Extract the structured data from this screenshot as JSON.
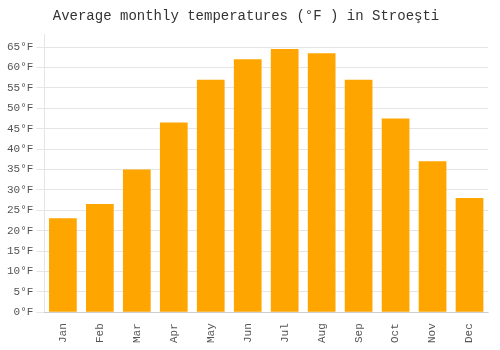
{
  "chart_data": {
    "type": "bar",
    "title": "Average monthly temperatures (°F ) in Stroeşti",
    "categories": [
      "Jan",
      "Feb",
      "Mar",
      "Apr",
      "May",
      "Jun",
      "Jul",
      "Aug",
      "Sep",
      "Oct",
      "Nov",
      "Dec"
    ],
    "values": [
      23,
      26.5,
      35,
      46.5,
      57,
      62,
      64.5,
      63.5,
      57,
      47.5,
      37,
      28
    ],
    "color": "#FFA500",
    "ylim": [
      0,
      68
    ],
    "yticks": [
      {
        "value": 0,
        "label": "0°F"
      },
      {
        "value": 5,
        "label": "5°F"
      },
      {
        "value": 10,
        "label": "10°F"
      },
      {
        "value": 15,
        "label": "15°F"
      },
      {
        "value": 20,
        "label": "20°F"
      },
      {
        "value": 25,
        "label": "25°F"
      },
      {
        "value": 30,
        "label": "30°F"
      },
      {
        "value": 35,
        "label": "35°F"
      },
      {
        "value": 40,
        "label": "40°F"
      },
      {
        "value": 45,
        "label": "45°F"
      },
      {
        "value": 50,
        "label": "50°F"
      },
      {
        "value": 55,
        "label": "55°F"
      },
      {
        "value": 60,
        "label": "60°F"
      },
      {
        "value": 65,
        "label": "65°F"
      }
    ],
    "grid": true
  }
}
